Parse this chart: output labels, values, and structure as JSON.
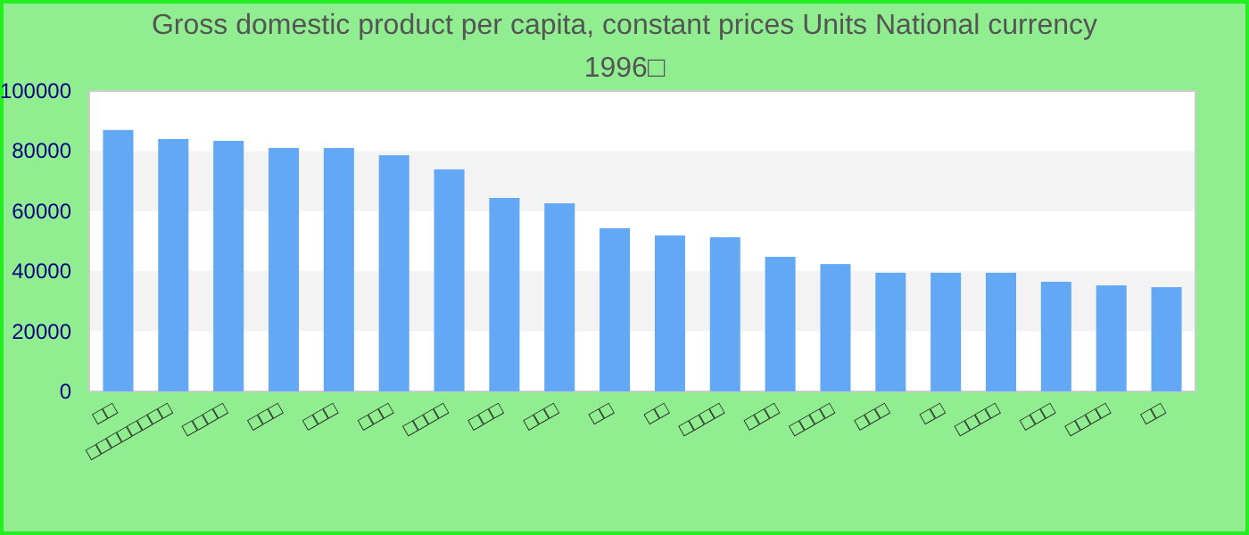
{
  "chart_data": {
    "type": "bar",
    "title": "Gross domestic product per capita, constant prices Units National currency 1996□",
    "categories": [
      "□□",
      "□□□□□□□□",
      "□□□□",
      "□□□",
      "□□□",
      "□□□",
      "□□□□",
      "□□□",
      "□□□",
      "□□",
      "□□",
      "□□□□",
      "□□□",
      "□□□□",
      "□□□",
      "□□",
      "□□□□",
      "□□□",
      "□□□□",
      "□□"
    ],
    "values": [
      87000,
      84000,
      83400,
      81000,
      81000,
      78600,
      73900,
      64400,
      62600,
      54300,
      51900,
      51300,
      44800,
      42400,
      39500,
      39500,
      39500,
      36500,
      35300,
      34700
    ],
    "color": "#62a8f4",
    "ylim": [
      0,
      100000
    ],
    "yticks": [
      0,
      20000,
      40000,
      60000,
      80000,
      100000
    ]
  }
}
